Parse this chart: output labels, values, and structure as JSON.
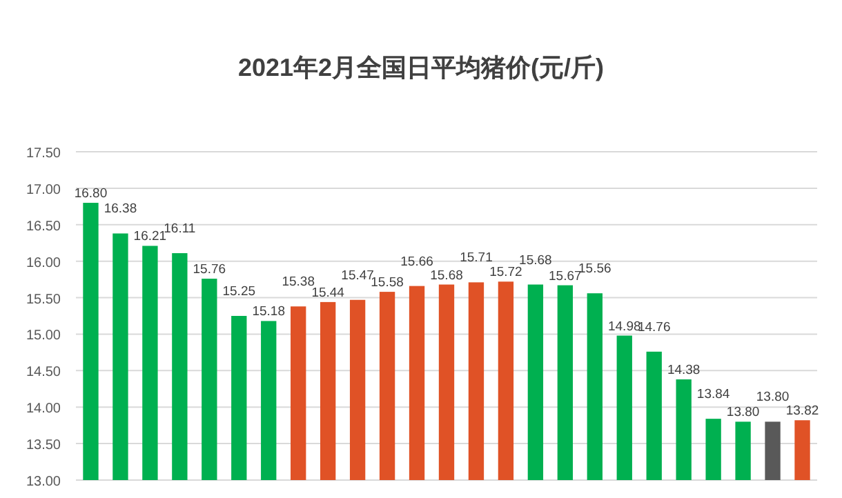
{
  "chart_data": {
    "type": "bar",
    "title": "2021年2月全国日平均猪价(元/斤)",
    "categories": [
      null,
      null,
      null,
      null,
      null,
      null,
      null,
      null,
      null,
      null,
      null,
      null,
      null,
      null,
      null,
      null,
      null,
      null,
      null,
      null,
      null,
      null,
      null,
      null,
      null
    ],
    "values": [
      16.8,
      16.38,
      16.21,
      16.11,
      15.76,
      15.25,
      15.18,
      15.38,
      15.44,
      15.47,
      15.58,
      15.66,
      15.68,
      15.71,
      15.72,
      15.68,
      15.67,
      15.56,
      14.98,
      14.76,
      14.38,
      13.84,
      13.8,
      13.8,
      13.82
    ],
    "value_labels": [
      "16.80",
      "16.38",
      "16.21",
      "16.11",
      "15.76",
      "15.25",
      "15.18",
      "15.38",
      "15.44",
      "15.47",
      "15.58",
      "15.66",
      "15.68",
      "15.71",
      "15.72",
      "15.68",
      "15.67",
      "15.56",
      "14.98",
      "14.76",
      "14.38",
      "13.84",
      "13.80",
      "13.80",
      "13.82"
    ],
    "colors": [
      "#00b050",
      "#00b050",
      "#00b050",
      "#00b050",
      "#00b050",
      "#00b050",
      "#00b050",
      "#e05226",
      "#e05226",
      "#e05226",
      "#e05226",
      "#e05226",
      "#e05226",
      "#e05226",
      "#e05226",
      "#00b050",
      "#00b050",
      "#00b050",
      "#00b050",
      "#00b050",
      "#00b050",
      "#00b050",
      "#00b050",
      "#595959",
      "#e05226"
    ],
    "ylim": [
      13,
      17.5
    ],
    "yticks": [
      {
        "value": 13,
        "label": "13.00"
      },
      {
        "value": 13.5,
        "label": "13.50"
      },
      {
        "value": 14,
        "label": "14.00"
      },
      {
        "value": 14.5,
        "label": "14.50"
      },
      {
        "value": 15,
        "label": "15.00"
      },
      {
        "value": 15.5,
        "label": "15.50"
      },
      {
        "value": 16,
        "label": "16.00"
      },
      {
        "value": 16.5,
        "label": "16.50"
      },
      {
        "value": 17,
        "label": "17.00"
      },
      {
        "value": 17.5,
        "label": "17.50"
      }
    ],
    "grid": "y"
  }
}
